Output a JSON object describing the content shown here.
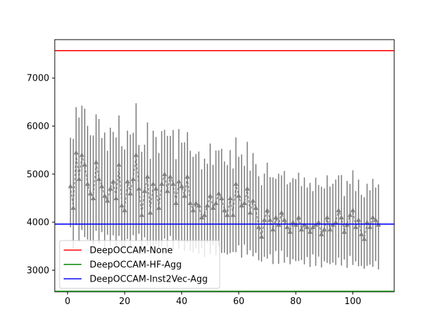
{
  "chart_data": {
    "type": "line",
    "title": "",
    "xlabel": "",
    "ylabel": "",
    "xlim": [
      -4.5,
      114.5
    ],
    "ylim": [
      2550,
      7800
    ],
    "x_ticks": [
      0,
      20,
      40,
      60,
      80,
      100
    ],
    "y_ticks": [
      3000,
      4000,
      5000,
      6000,
      7000
    ],
    "grid": false,
    "legend_placement": "lower-left",
    "reference_lines": [
      {
        "name": "DeepOCCAM-None",
        "color": "#ff0000",
        "y": 7570
      },
      {
        "name": "DeepOCCAM-HF-Agg",
        "color": "#008000",
        "y": 2560
      },
      {
        "name": "DeepOCCAM-Inst2Vec-Agg",
        "color": "#0000ff",
        "y": 3960
      }
    ],
    "errorbar_series": {
      "color": "#808080",
      "marker": "triangle-up",
      "linestyle": "dashed",
      "x_start": 1,
      "x_end": 109,
      "trend_start": 4900,
      "trend_end": 3850,
      "mean_values": [
        4750,
        4300,
        5450,
        4900,
        5400,
        5200,
        4800,
        4600,
        4500,
        5250,
        4900,
        4750,
        4550,
        4450,
        4700,
        4850,
        4500,
        5200,
        4350,
        4250,
        4850,
        4600,
        4900,
        5400,
        4700,
        4150,
        4650,
        4950,
        4200,
        4800,
        4700,
        4300,
        4800,
        5000,
        4650,
        4950,
        4800,
        4400,
        4850,
        4750,
        4550,
        4950,
        4400,
        4250,
        4400,
        4350,
        4100,
        4150,
        4350,
        4550,
        4300,
        4400,
        4600,
        4500,
        4250,
        4150,
        4500,
        4150,
        4800,
        4550,
        4350,
        4400,
        4700,
        4200,
        4450,
        4300,
        3900,
        3700,
        4050,
        4250,
        4050,
        3850,
        4100,
        3950,
        4200,
        4050,
        3900,
        3800,
        4000,
        3950,
        4100,
        3850,
        3950,
        3900,
        3800,
        3900,
        3950,
        4000,
        3750,
        3850,
        4100,
        3850,
        3950,
        4000,
        4250,
        4100,
        3800,
        3950,
        4150,
        4250,
        3900,
        4050,
        3750,
        3650,
        4000,
        3900,
        4100,
        4050,
        3950
      ],
      "error_scale": 1150
    }
  }
}
